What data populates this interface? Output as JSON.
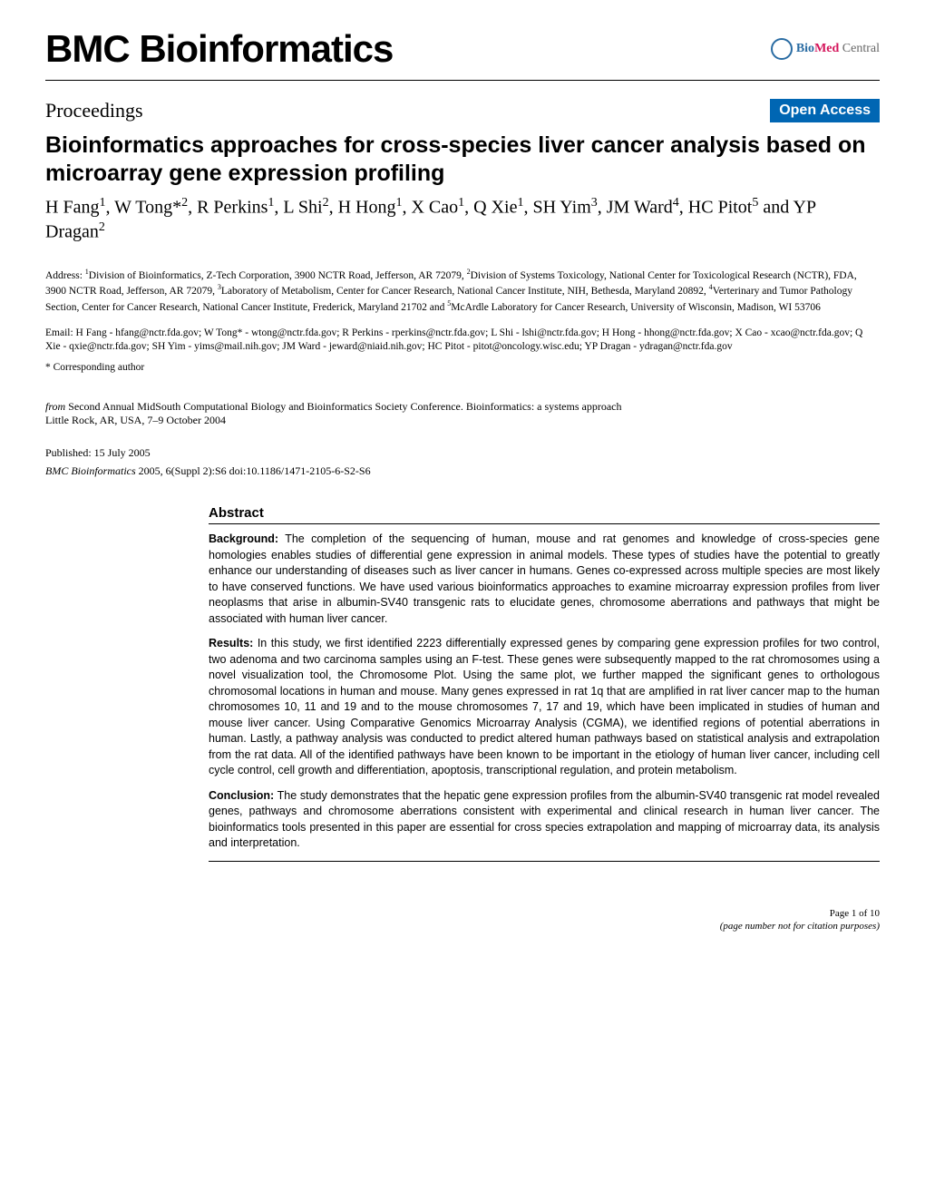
{
  "header": {
    "journal_title": "BMC Bioinformatics",
    "logo": {
      "bio": "BioMed",
      "central": " Central"
    }
  },
  "proceedings": {
    "label": "Proceedings",
    "open_access": "Open Access"
  },
  "article": {
    "title": "Bioinformatics approaches for cross-species liver cancer analysis based on microarray gene expression profiling",
    "authors_html": "H Fang<sup>1</sup>, W Tong*<sup>2</sup>, R Perkins<sup>1</sup>, L Shi<sup>2</sup>, H Hong<sup>1</sup>, X Cao<sup>1</sup>, Q Xie<sup>1</sup>, SH Yim<sup>3</sup>, JM Ward<sup>4</sup>, HC Pitot<sup>5</sup> and YP Dragan<sup>2</sup>"
  },
  "affiliations": "Address: <sup>1</sup>Division of Bioinformatics, Z-Tech Corporation, 3900 NCTR Road, Jefferson, AR 72079, <sup>2</sup>Division of Systems Toxicology, National Center for Toxicological Research (NCTR), FDA, 3900 NCTR Road, Jefferson, AR 72079, <sup>3</sup>Laboratory of Metabolism, Center for Cancer Research, National Cancer Institute, NIH, Bethesda, Maryland 20892, <sup>4</sup>Verterinary and Tumor Pathology Section, Center for Cancer Research, National Cancer Institute, Frederick, Maryland 21702 and <sup>5</sup>McArdle Laboratory for Cancer Research, University of Wisconsin, Madison, WI 53706",
  "emails": "Email: H Fang - hfang@nctr.fda.gov; W Tong* - wtong@nctr.fda.gov; R Perkins - rperkins@nctr.fda.gov; L Shi - lshi@nctr.fda.gov; H Hong - hhong@nctr.fda.gov; X Cao - xcao@nctr.fda.gov; Q Xie - qxie@nctr.fda.gov; SH Yim - yims@mail.nih.gov; JM Ward - jeward@niaid.nih.gov; HC Pitot - pitot@oncology.wisc.edu; YP Dragan - ydragan@nctr.fda.gov",
  "corresponding": "* Corresponding author",
  "from": {
    "prefix": "from ",
    "conference": "Second Annual MidSouth Computational Biology and Bioinformatics Society Conference. Bioinformatics: a systems approach",
    "location": "Little Rock, AR, USA, 7–9 October 2004"
  },
  "published": "Published: 15 July 2005",
  "citation": {
    "journal": "BMC Bioinformatics",
    "rest": " 2005, 6(Suppl 2):S6    doi:10.1186/1471-2105-6-S2-S6"
  },
  "abstract": {
    "heading": "Abstract",
    "background_label": "Background:",
    "background_text": " The completion of the sequencing of human, mouse and rat genomes and knowledge of cross-species gene homologies enables studies of differential gene expression in animal models. These types of studies have the potential to greatly enhance our understanding of diseases such as liver cancer in humans. Genes co-expressed across multiple species are most likely to have conserved functions. We have used various bioinformatics approaches to examine microarray expression profiles from liver neoplasms that arise in albumin-SV40 transgenic rats to elucidate genes, chromosome aberrations and pathways that might be associated with human liver cancer.",
    "results_label": "Results:",
    "results_text": " In this study, we first identified 2223 differentially expressed genes by comparing gene expression profiles for two control, two adenoma and two carcinoma samples using an F-test. These genes were subsequently mapped to the rat chromosomes using a novel visualization tool, the Chromosome Plot. Using the same plot, we further mapped the significant genes to orthologous chromosomal locations in human and mouse. Many genes expressed in rat 1q that are amplified in rat liver cancer map to the human chromosomes 10, 11 and 19 and to the mouse chromosomes 7, 17 and 19, which have been implicated in studies of human and mouse liver cancer. Using Comparative Genomics Microarray Analysis (CGMA), we identified regions of potential aberrations in human. Lastly, a pathway analysis was conducted to predict altered human pathways based on statistical analysis and extrapolation from the rat data. All of the identified pathways have been known to be important in the etiology of human liver cancer, including cell cycle control, cell growth and differentiation, apoptosis, transcriptional regulation, and protein metabolism.",
    "conclusion_label": "Conclusion:",
    "conclusion_text": " The study demonstrates that the hepatic gene expression profiles from the albumin-SV40 transgenic rat model revealed genes, pathways and chromosome aberrations consistent with experimental and clinical research in human liver cancer. The bioinformatics tools presented in this paper are essential for cross species extrapolation and mapping of microarray data, its analysis and interpretation."
  },
  "footer": {
    "page": "Page 1 of 10",
    "note": "(page number not for citation purposes)"
  },
  "colors": {
    "open_access_bg": "#0066b3",
    "open_access_fg": "#ffffff",
    "logo_bio": "#2a6ca3",
    "logo_med": "#d4145a"
  }
}
